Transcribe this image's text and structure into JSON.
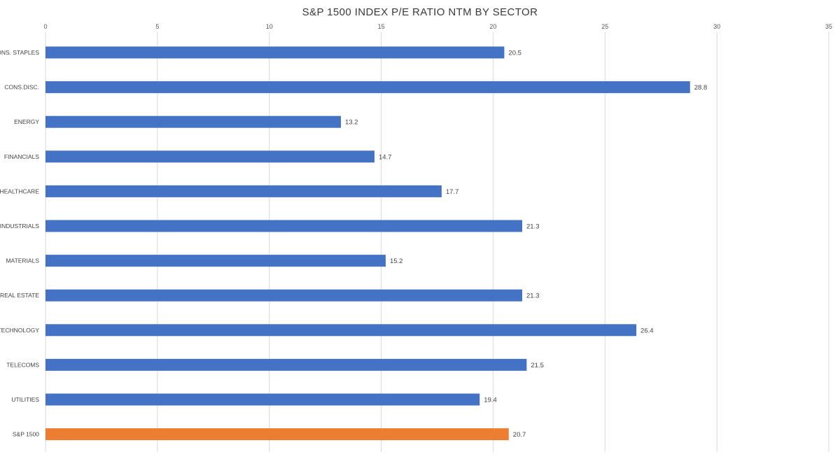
{
  "chart_data": {
    "type": "bar",
    "orientation": "horizontal",
    "title": "S&P 1500 INDEX P/E RATIO NTM BY SECTOR",
    "xlabel": "",
    "ylabel": "",
    "xlim": [
      0,
      35
    ],
    "x_ticks": [
      0,
      5,
      10,
      15,
      20,
      25,
      30,
      35
    ],
    "x_axis_position": "top",
    "grid": "vertical",
    "legend": "none",
    "categories": [
      "CONS. STAPLES",
      "CONS.DISC.",
      "ENERGY",
      "FINANCIALS",
      "HEALTHCARE",
      "INDUSTRIALS",
      "MATERIALS",
      "REAL ESTATE",
      "TECHNOLOGY",
      "TELECOMS",
      "UTILITIES",
      "S&P 1500"
    ],
    "values": [
      20.5,
      28.8,
      13.2,
      14.7,
      17.7,
      21.3,
      15.2,
      21.3,
      26.4,
      21.5,
      19.4,
      20.7
    ],
    "data_labels": [
      "20.5",
      "28.8",
      "13.2",
      "14.7",
      "17.7",
      "21.3",
      "15.2",
      "21.3",
      "26.4",
      "21.5",
      "19.4",
      "20.7"
    ],
    "bar_colors": [
      "#4472c4",
      "#4472c4",
      "#4472c4",
      "#4472c4",
      "#4472c4",
      "#4472c4",
      "#4472c4",
      "#4472c4",
      "#4472c4",
      "#4472c4",
      "#4472c4",
      "#ed7d31"
    ]
  }
}
